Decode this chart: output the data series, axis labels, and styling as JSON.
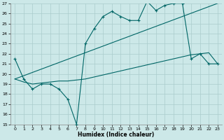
{
  "xlabel": "Humidex (Indice chaleur)",
  "xlim_min": -0.5,
  "xlim_max": 23.5,
  "ylim_min": 15,
  "ylim_max": 27,
  "yticks": [
    15,
    16,
    17,
    18,
    19,
    20,
    21,
    22,
    23,
    24,
    25,
    26,
    27
  ],
  "xticks": [
    0,
    1,
    2,
    3,
    4,
    5,
    6,
    7,
    8,
    9,
    10,
    11,
    12,
    13,
    14,
    15,
    16,
    17,
    18,
    19,
    20,
    21,
    22,
    23
  ],
  "bg_color": "#cce8e8",
  "grid_color": "#aacccc",
  "line_color": "#006666",
  "line1_x": [
    0,
    1,
    2,
    3,
    4,
    5,
    6,
    7,
    8,
    9,
    10,
    11,
    12,
    13,
    14,
    15,
    16,
    17,
    18,
    19,
    20,
    21,
    22,
    23
  ],
  "line1_y": [
    21.5,
    19.5,
    18.5,
    19.0,
    19.0,
    18.5,
    17.5,
    15.0,
    23.0,
    24.5,
    25.7,
    26.2,
    25.7,
    25.3,
    25.3,
    27.2,
    26.3,
    26.8,
    27.0,
    27.0,
    21.5,
    22.0,
    21.0,
    21.0
  ],
  "line2_x": [
    0,
    1,
    2,
    3,
    4,
    5,
    6,
    7,
    8,
    9,
    10,
    11,
    12,
    13,
    14,
    15,
    16,
    17,
    18,
    19,
    20,
    21,
    22,
    23
  ],
  "line2_y": [
    19.5,
    19.2,
    19.0,
    19.1,
    19.2,
    19.3,
    19.3,
    19.4,
    19.5,
    19.7,
    19.9,
    20.1,
    20.3,
    20.5,
    20.7,
    20.9,
    21.1,
    21.3,
    21.5,
    21.7,
    21.9,
    22.0,
    22.1,
    21.0
  ],
  "line3_x": [
    0,
    23
  ],
  "line3_y": [
    19.5,
    27.0
  ]
}
